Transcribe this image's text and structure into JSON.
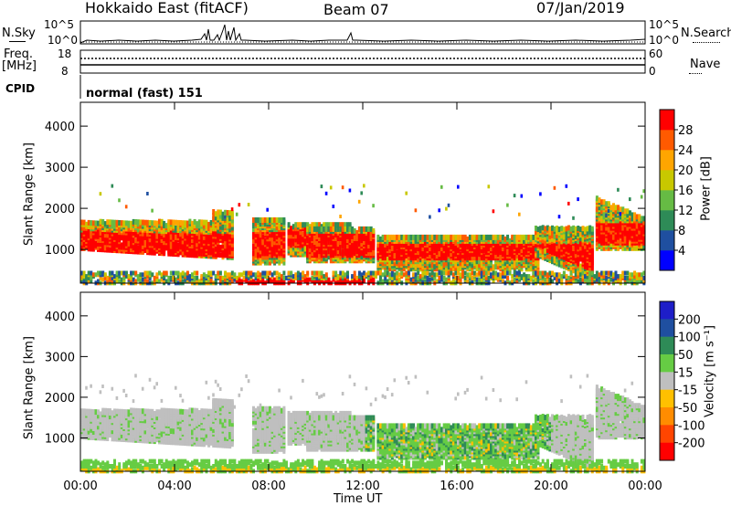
{
  "header": {
    "station": "Hokkaido East (fitACF)",
    "beam": "Beam 07",
    "date": "07/Jan/2019"
  },
  "panels": {
    "nsky_label": "N.Sky",
    "nsearch_label": "N.Search",
    "nsky_ticks": [
      "10^5",
      "10^0"
    ],
    "nsearch_ticks": [
      "10^5",
      "10^0"
    ],
    "freq_label": "Freq.",
    "freq_unit": "[MHz]",
    "freq_ticks": [
      "18",
      "8"
    ],
    "nave_label": "Nave",
    "nave_ticks": [
      "60",
      "0"
    ],
    "cpid_label": "CPID",
    "cpid_value": "normal (fast) 151"
  },
  "colors": {
    "power_scale": [
      "#0000ff",
      "#1f4fa0",
      "#2e8b57",
      "#66bb44",
      "#c8c800",
      "#ffa500",
      "#ff5a00",
      "#ff0000"
    ],
    "velocity_scale": [
      "#1e1ec8",
      "#1f4fa0",
      "#2e8b57",
      "#66cc44",
      "#bfbfbf",
      "#ffc000",
      "#ff8c00",
      "#ff4500",
      "#ff0000"
    ]
  },
  "chart_data": [
    {
      "type": "heatmap",
      "title": "Power",
      "xlabel": "Time UT",
      "ylabel": "Slant Range [km]",
      "x_ticks": [
        "00:00",
        "04:00",
        "08:00",
        "12:00",
        "16:00",
        "20:00",
        "00:00"
      ],
      "xlim_hours": [
        0,
        24
      ],
      "y_ticks": [
        1000,
        2000,
        3000,
        4000
      ],
      "ylim": [
        180,
        4580
      ],
      "colorbar_label": "Power [dB]",
      "colorbar_ticks": [
        4,
        8,
        12,
        16,
        20,
        24,
        28
      ],
      "colorbar_range": [
        0,
        32
      ],
      "grid": false
    },
    {
      "type": "heatmap",
      "title": "Velocity",
      "xlabel": "Time UT",
      "ylabel": "Slant Range [km]",
      "x_ticks": [
        "00:00",
        "04:00",
        "08:00",
        "12:00",
        "16:00",
        "20:00",
        "00:00"
      ],
      "xlim_hours": [
        0,
        24
      ],
      "y_ticks": [
        1000,
        2000,
        3000,
        4000
      ],
      "ylim": [
        180,
        4580
      ],
      "colorbar_label": "Velocity [m s⁻¹]",
      "colorbar_ticks": [
        "200",
        "100",
        "50",
        "15",
        "-15",
        "-50",
        "-100",
        "-200"
      ],
      "grid": false
    }
  ]
}
